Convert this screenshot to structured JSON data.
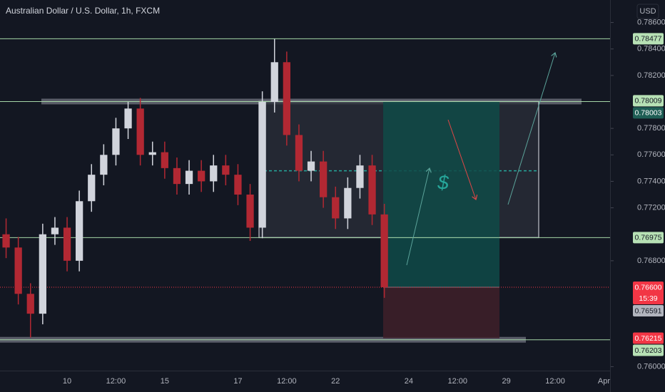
{
  "chart_data": {
    "type": "candlestick",
    "title": "Australian Dollar / U.S. Dollar, 1h, FXCM",
    "currency": "USD",
    "categories": [
      null,
      null,
      null,
      null,
      null,
      "10",
      null,
      null,
      null,
      "12:00",
      null,
      null,
      null,
      "15",
      null,
      null,
      null,
      null,
      null,
      "17",
      null,
      null,
      null,
      "12:00",
      null,
      null,
      null,
      "22",
      null,
      null,
      null,
      null,
      null,
      "24",
      null,
      null,
      null,
      "12:00",
      null,
      null,
      null,
      "29",
      null,
      null,
      null,
      "12:00",
      null,
      null,
      null,
      "Apr"
    ],
    "open": [
      0.77,
      0.769,
      0.7655,
      0.764,
      0.77,
      0.7705,
      0.768,
      0.7725,
      0.7745,
      0.776,
      0.778,
      0.7795,
      0.776,
      0.7762,
      0.775,
      0.7738,
      0.7748,
      0.774,
      0.7752,
      0.7745,
      0.773,
      0.7705,
      0.78,
      0.783,
      0.7775,
      0.7748,
      0.7755,
      0.7728,
      0.7712,
      0.7735,
      0.7752,
      0.7715,
      null,
      null,
      null,
      null,
      null,
      null,
      null,
      null,
      null,
      null,
      null,
      null,
      null,
      null,
      null,
      null,
      null,
      null
    ],
    "high": [
      0.7712,
      0.7698,
      0.7663,
      0.7708,
      0.7713,
      0.7713,
      0.7733,
      0.7753,
      0.7768,
      0.7788,
      0.78,
      0.7803,
      0.777,
      0.777,
      0.7758,
      0.7756,
      0.7756,
      0.776,
      0.776,
      0.7753,
      0.7738,
      0.7808,
      0.78477,
      0.7838,
      0.7783,
      0.7763,
      0.7763,
      0.7736,
      0.7743,
      0.776,
      0.776,
      0.7723,
      null,
      null,
      null,
      null,
      null,
      null,
      null,
      null,
      null,
      null,
      null,
      null,
      null,
      null,
      null,
      null,
      null,
      null
    ],
    "low": [
      0.7682,
      0.7647,
      0.7622,
      0.7632,
      0.7692,
      0.7672,
      0.7672,
      0.7717,
      0.7737,
      0.7752,
      0.7772,
      0.7752,
      0.7752,
      0.7742,
      0.773,
      0.773,
      0.7732,
      0.7732,
      0.7737,
      0.7722,
      0.7695,
      0.7697,
      0.7792,
      0.7767,
      0.774,
      0.774,
      0.772,
      0.7704,
      0.7704,
      0.7727,
      0.7707,
      0.7652,
      null,
      null,
      null,
      null,
      null,
      null,
      null,
      null,
      null,
      null,
      null,
      null,
      null,
      null,
      null,
      null,
      null,
      null
    ],
    "close": [
      0.769,
      0.7655,
      0.764,
      0.77,
      0.7705,
      0.768,
      0.7725,
      0.7745,
      0.776,
      0.778,
      0.7795,
      0.776,
      0.7762,
      0.775,
      0.7738,
      0.7748,
      0.774,
      0.7752,
      0.7745,
      0.773,
      0.7705,
      0.78,
      0.783,
      0.7775,
      0.7748,
      0.7755,
      0.7728,
      0.7712,
      0.7735,
      0.7752,
      0.7715,
      0.766,
      null,
      null,
      null,
      null,
      null,
      null,
      null,
      null,
      null,
      null,
      null,
      null,
      null,
      null,
      null,
      null,
      null,
      null
    ],
    "up_color": "#d1d4dc",
    "down_color": "#b22833",
    "ylim": [
      0.7597,
      0.7877
    ],
    "yticks": [
      {
        "value": 0.786,
        "label": "0.78600"
      },
      {
        "value": 0.784,
        "label": "0.78400"
      },
      {
        "value": 0.782,
        "label": "0.78200"
      },
      {
        "value": 0.778,
        "label": "0.77800"
      },
      {
        "value": 0.776,
        "label": "0.77600"
      },
      {
        "value": 0.774,
        "label": "0.77400"
      },
      {
        "value": 0.772,
        "label": "0.77200"
      },
      {
        "value": 0.768,
        "label": "0.76800"
      },
      {
        "value": 0.76,
        "label": "0.76000"
      }
    ],
    "levels": [
      0.78477,
      0.78003,
      0.76975,
      0.76203
    ],
    "level_color": "#a5d6a7",
    "zones": [
      0.78003,
      0.76203
    ],
    "last_price": 0.766,
    "range_box": {
      "top": 0.78003,
      "bottom": 0.76975,
      "mid": 0.7748
    },
    "position": {
      "entry": 0.766,
      "target": 0.78003,
      "stop": 0.76215
    },
    "annotation": "$",
    "price_labels": [
      {
        "value": 0.78477,
        "label": "0.78477",
        "bg": "#b7e1b5",
        "fg": "#131722"
      },
      {
        "value": 0.78009,
        "label": "0.78009",
        "bg": "#b7e1b5",
        "fg": "#131722"
      },
      {
        "value": 0.78003,
        "label": "0.78003",
        "bg": "#1f5e55",
        "fg": "#ffffff"
      },
      {
        "value": 0.76975,
        "label": "0.76975",
        "bg": "#b7e1b5",
        "fg": "#131722"
      },
      {
        "value": 0.766,
        "label": "0.76600",
        "bg": "#f23645",
        "fg": "#ffffff",
        "countdown": "15:39"
      },
      {
        "value": 0.76591,
        "label": "0.76591",
        "bg": "#b2b5be",
        "fg": "#131722"
      },
      {
        "value": 0.76215,
        "label": "0.76215",
        "bg": "#f23645",
        "fg": "#ffffff"
      },
      {
        "value": 0.76203,
        "label": "0.76203",
        "bg": "#b7e1b5",
        "fg": "#131722"
      }
    ]
  }
}
